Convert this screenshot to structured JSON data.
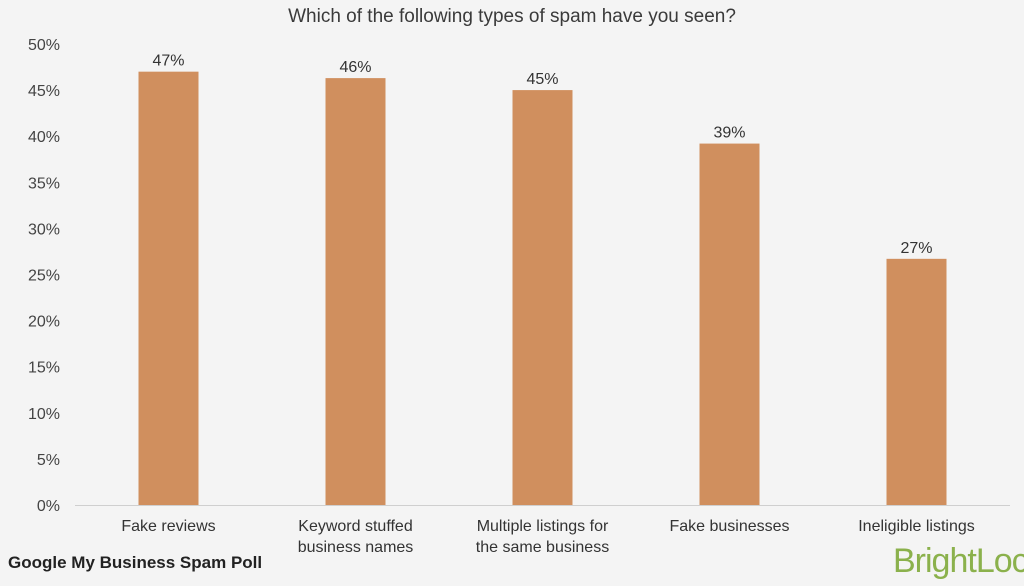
{
  "chart_data": {
    "type": "bar",
    "title": "Which of the following types of spam have you seen?",
    "categories": [
      [
        "Fake reviews"
      ],
      [
        "Keyword stuffed",
        "business names"
      ],
      [
        "Multiple listings for",
        "the same business"
      ],
      [
        "Fake businesses"
      ],
      [
        "Ineligible listings"
      ]
    ],
    "values": [
      47,
      46.3,
      45,
      39.2,
      26.7
    ],
    "data_labels": [
      "47%",
      "46%",
      "45%",
      "39%",
      "27%"
    ],
    "y_ticks": [
      "0%",
      "5%",
      "10%",
      "15%",
      "20%",
      "25%",
      "30%",
      "35%",
      "40%",
      "45%",
      "50%"
    ],
    "ylim": [
      0,
      50
    ],
    "xlabel": "",
    "ylabel": "",
    "grid": false,
    "bar_color": "#d08f5e"
  },
  "footer": {
    "caption": "Google My Business Spam Poll",
    "brand": "BrightLocal"
  }
}
